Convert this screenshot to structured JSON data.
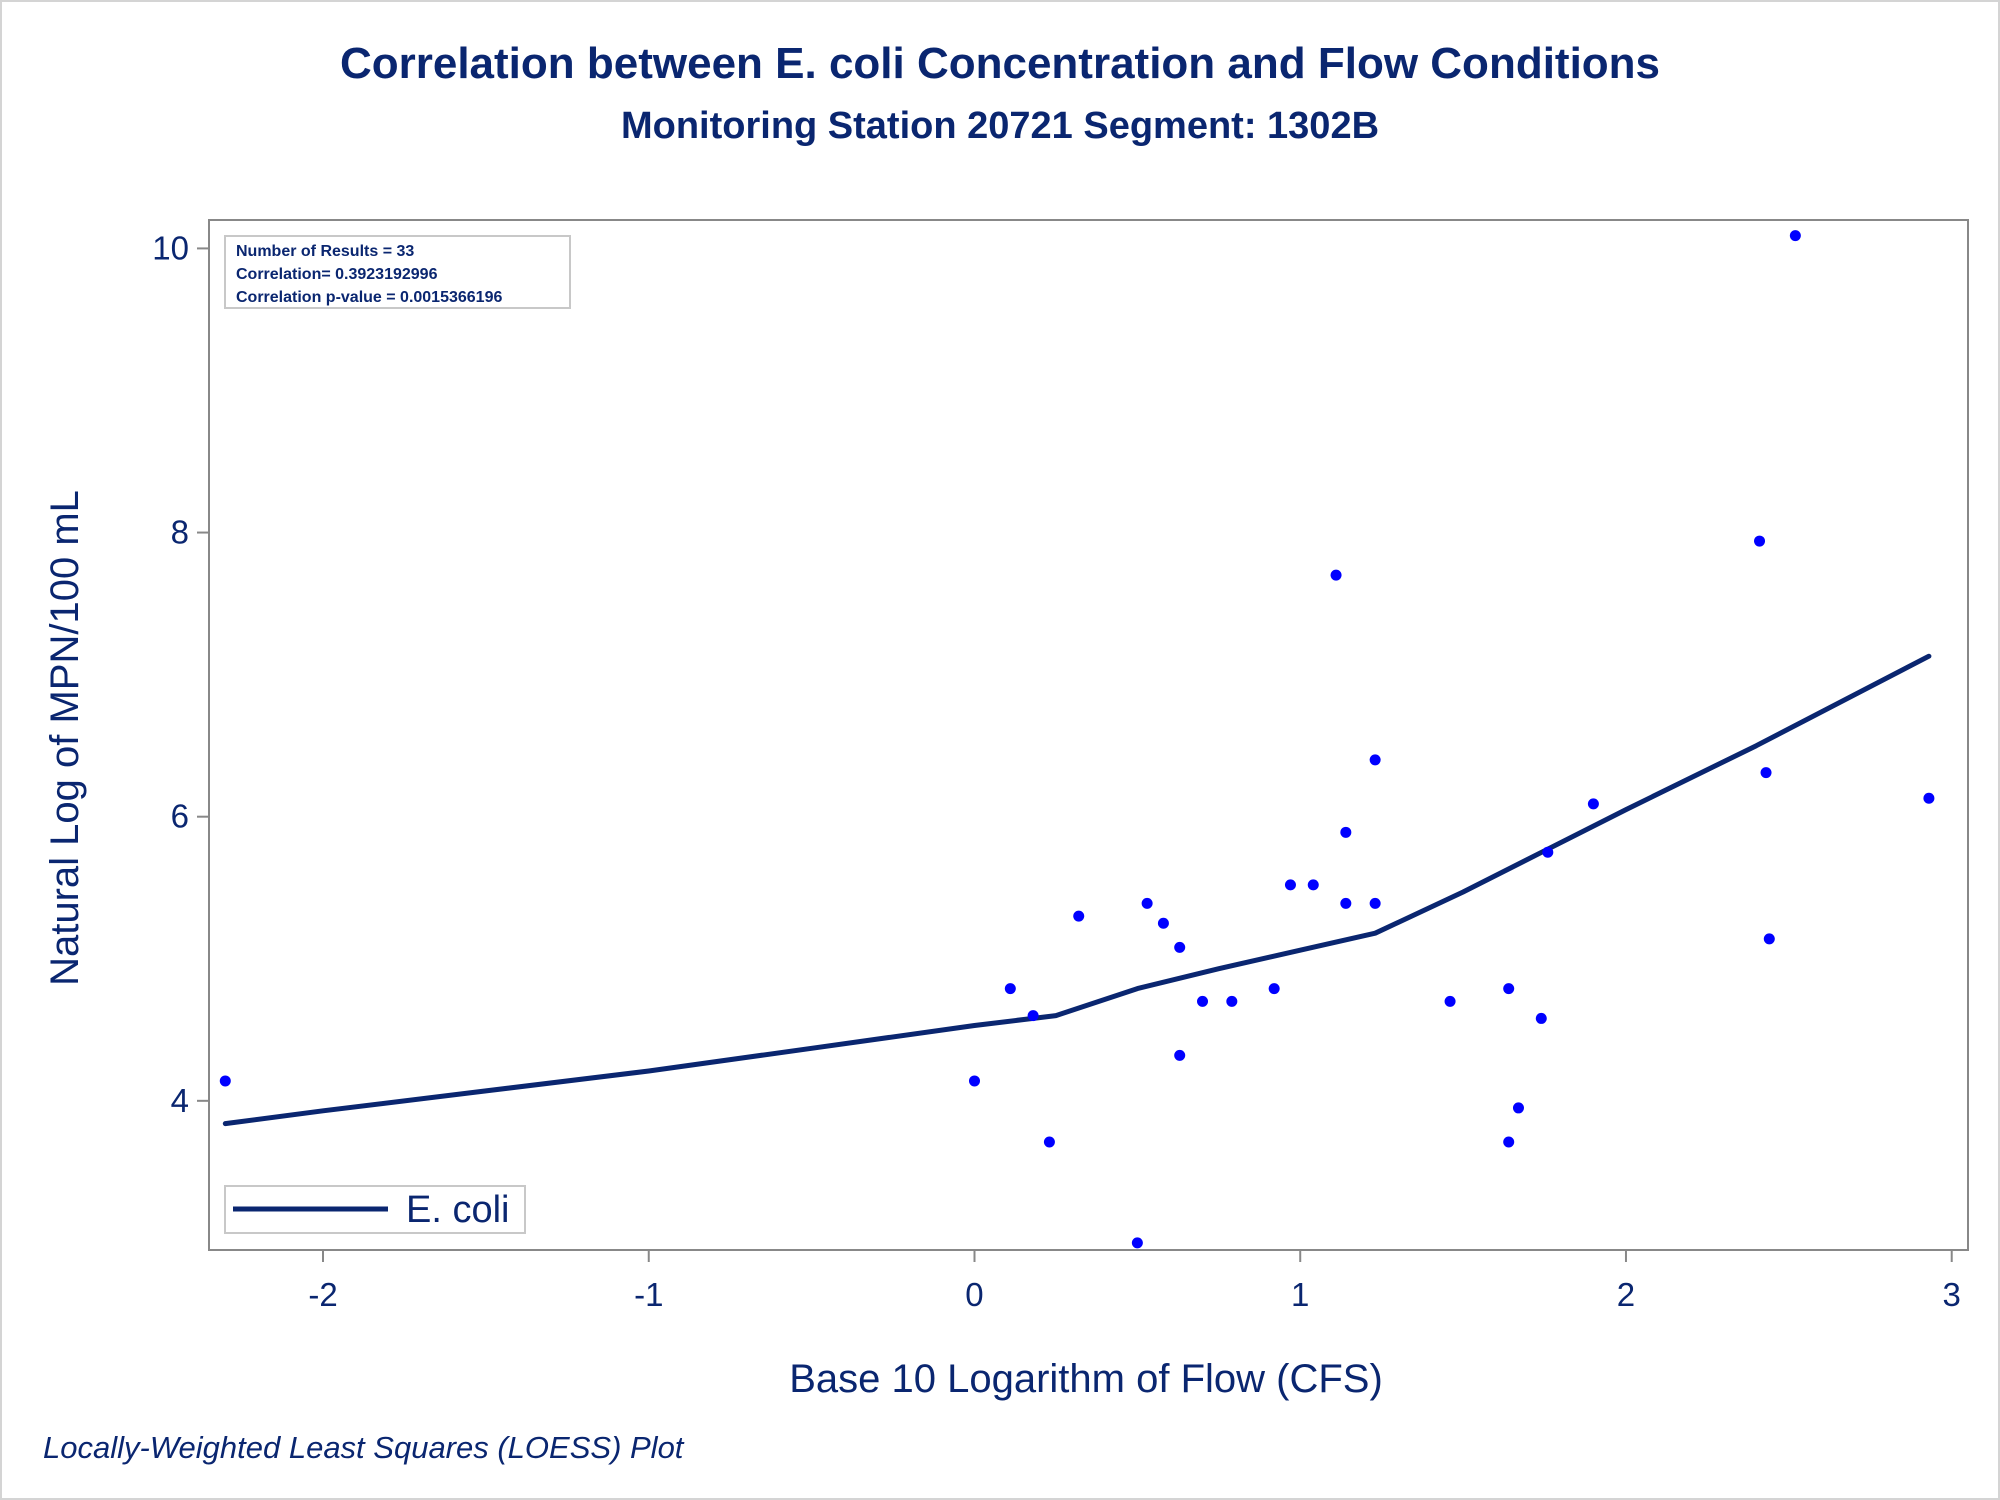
{
  "colors": {
    "text": "#0a2670",
    "line": "#0a2670",
    "points": "#0000ff",
    "axis": "#888888"
  },
  "chart_data": {
    "type": "scatter",
    "title": "Correlation between E. coli Concentration and Flow Conditions",
    "subtitle": "Monitoring Station 20721 Segment: 1302B",
    "xlabel": "Base 10 Logarithm of Flow (CFS)",
    "ylabel": "Natural Log of MPN/100 mL",
    "xlim": [
      -2.35,
      3.05
    ],
    "ylim": [
      2.95,
      10.2
    ],
    "xticks": [
      -2,
      -1,
      0,
      1,
      2,
      3
    ],
    "yticks": [
      4,
      6,
      8,
      10
    ],
    "x_tick_labels": [
      "-2",
      "-1",
      "0",
      "1",
      "2",
      "3"
    ],
    "y_tick_labels": [
      "4",
      "6",
      "8",
      "10"
    ],
    "grid": false,
    "legend_position": "bottom-left",
    "stats": [
      "Number of Results = 33",
      "Correlation= 0.3923192996",
      "Correlation p-value = 0.0015366196"
    ],
    "footnote": "Locally-Weighted Least Squares (LOESS) Plot",
    "scatter_points": [
      {
        "x": -2.3,
        "y": 4.14
      },
      {
        "x": 0.0,
        "y": 4.14
      },
      {
        "x": 0.11,
        "y": 4.79
      },
      {
        "x": 0.18,
        "y": 4.6
      },
      {
        "x": 0.23,
        "y": 3.71
      },
      {
        "x": 0.32,
        "y": 5.3
      },
      {
        "x": 0.5,
        "y": 3.0
      },
      {
        "x": 0.53,
        "y": 5.39
      },
      {
        "x": 0.58,
        "y": 5.25
      },
      {
        "x": 0.63,
        "y": 5.08
      },
      {
        "x": 0.63,
        "y": 4.32
      },
      {
        "x": 0.7,
        "y": 4.7
      },
      {
        "x": 0.79,
        "y": 4.7
      },
      {
        "x": 0.92,
        "y": 4.79
      },
      {
        "x": 0.97,
        "y": 5.52
      },
      {
        "x": 1.04,
        "y": 5.52
      },
      {
        "x": 1.11,
        "y": 7.7
      },
      {
        "x": 1.14,
        "y": 5.89
      },
      {
        "x": 1.14,
        "y": 5.39
      },
      {
        "x": 1.23,
        "y": 6.4
      },
      {
        "x": 1.23,
        "y": 5.39
      },
      {
        "x": 1.46,
        "y": 4.7
      },
      {
        "x": 1.64,
        "y": 4.79
      },
      {
        "x": 1.64,
        "y": 3.71
      },
      {
        "x": 1.67,
        "y": 3.95
      },
      {
        "x": 1.74,
        "y": 4.58
      },
      {
        "x": 1.76,
        "y": 5.75
      },
      {
        "x": 1.9,
        "y": 6.09
      },
      {
        "x": 2.41,
        "y": 7.94
      },
      {
        "x": 2.43,
        "y": 6.31
      },
      {
        "x": 2.44,
        "y": 5.14
      },
      {
        "x": 2.52,
        "y": 10.09
      },
      {
        "x": 2.93,
        "y": 6.13
      }
    ],
    "series": [
      {
        "name": "E. coli",
        "type": "line",
        "x": [
          -2.3,
          -2.0,
          -1.5,
          -1.0,
          -0.5,
          0.0,
          0.25,
          0.5,
          0.75,
          1.0,
          1.23,
          1.5,
          1.75,
          2.0,
          2.4,
          2.93
        ],
        "y": [
          3.84,
          3.93,
          4.07,
          4.21,
          4.37,
          4.53,
          4.6,
          4.79,
          4.93,
          5.06,
          5.18,
          5.47,
          5.76,
          6.05,
          6.5,
          7.13
        ]
      }
    ]
  }
}
